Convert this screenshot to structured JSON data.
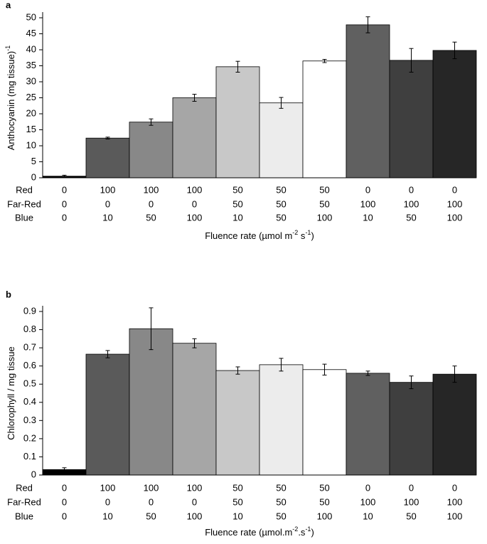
{
  "chart_data": [
    {
      "type": "bar",
      "panel_label": "a",
      "ylabel": [
        {
          "text": "Anthocyanin (mg tissue)"
        },
        {
          "text": "-1",
          "sup": true
        }
      ],
      "xlabel": [
        {
          "text": "Fluence rate (µmol m"
        },
        {
          "text": "-2",
          "sup": true
        },
        {
          "text": " s"
        },
        {
          "text": "-1",
          "sup": true
        },
        {
          "text": ")"
        }
      ],
      "category_rows": [
        {
          "name": "Red",
          "values": [
            0,
            100,
            100,
            100,
            50,
            50,
            50,
            0,
            0,
            0
          ]
        },
        {
          "name": "Far-Red",
          "values": [
            0,
            0,
            0,
            0,
            50,
            50,
            50,
            100,
            100,
            100
          ]
        },
        {
          "name": "Blue",
          "values": [
            0,
            10,
            50,
            100,
            10,
            50,
            100,
            10,
            50,
            100
          ]
        }
      ],
      "values": [
        0.5,
        12.4,
        17.4,
        25,
        34.7,
        23.4,
        36.5,
        47.8,
        36.7,
        39.8
      ],
      "errors": [
        0.3,
        0.3,
        1,
        1.1,
        1.7,
        1.7,
        0.5,
        2.5,
        3.7,
        2.6
      ],
      "colors": [
        "#000000",
        "#5a5a5a",
        "#888888",
        "#a6a6a6",
        "#c8c8c8",
        "#ececec",
        "#ffffff",
        "#606060",
        "#3f3f3f",
        "#262626"
      ],
      "ylim": [
        0,
        50
      ],
      "yticks": [
        0,
        5,
        10,
        15,
        20,
        25,
        30,
        35,
        40,
        45,
        50
      ]
    },
    {
      "type": "bar",
      "panel_label": "b",
      "ylabel": [
        {
          "text": "Chlorophyll / mg tissue"
        }
      ],
      "xlabel": [
        {
          "text": "Fluence rate (µmol.m"
        },
        {
          "text": "-2",
          "sup": true
        },
        {
          "text": ".s"
        },
        {
          "text": "-1",
          "sup": true
        },
        {
          "text": ")"
        }
      ],
      "category_rows": [
        {
          "name": "Red",
          "values": [
            0,
            100,
            100,
            100,
            50,
            50,
            50,
            0,
            0,
            0
          ]
        },
        {
          "name": "Far-Red",
          "values": [
            0,
            0,
            0,
            0,
            50,
            50,
            50,
            100,
            100,
            100
          ]
        },
        {
          "name": "Blue",
          "values": [
            0,
            10,
            50,
            100,
            10,
            50,
            100,
            10,
            50,
            100
          ]
        }
      ],
      "values": [
        0.03,
        0.665,
        0.805,
        0.725,
        0.575,
        0.607,
        0.58,
        0.56,
        0.51,
        0.555
      ],
      "errors": [
        0.01,
        0.02,
        0.115,
        0.025,
        0.02,
        0.035,
        0.03,
        0.012,
        0.035,
        0.045
      ],
      "colors": [
        "#000000",
        "#5a5a5a",
        "#888888",
        "#a6a6a6",
        "#c8c8c8",
        "#ececec",
        "#ffffff",
        "#606060",
        "#3f3f3f",
        "#262626"
      ],
      "ylim": [
        0,
        0.9
      ],
      "yticks": [
        0,
        0.1,
        0.2,
        0.3,
        0.4,
        0.5,
        0.6,
        0.7,
        0.8,
        0.9
      ]
    }
  ]
}
